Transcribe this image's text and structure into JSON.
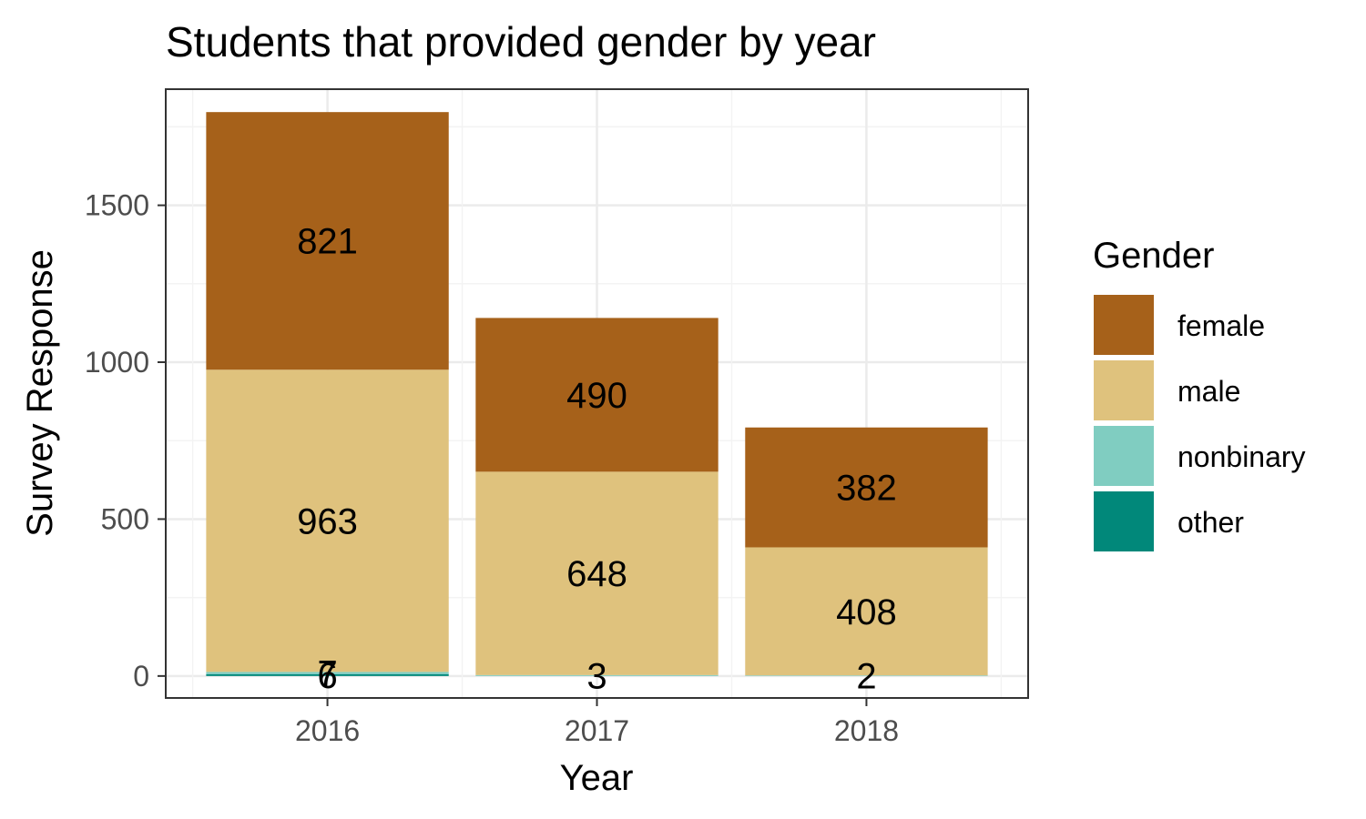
{
  "chart_data": {
    "type": "bar",
    "stacked": true,
    "title": "Students that provided gender by year",
    "xlabel": "Year",
    "ylabel": "Survey Response",
    "categories": [
      "2016",
      "2017",
      "2018"
    ],
    "ylim": [
      -70,
      1870
    ],
    "yticks": [
      0,
      500,
      1000,
      1500
    ],
    "grid": true,
    "legend": {
      "title": "Gender",
      "position": "right"
    },
    "series": [
      {
        "name": "other",
        "color": "#01887a",
        "values": [
          6,
          0,
          0
        ],
        "labels": [
          "6",
          "",
          ""
        ]
      },
      {
        "name": "nonbinary",
        "color": "#80cdc1",
        "values": [
          7,
          3,
          2
        ],
        "labels": [
          "7",
          "3",
          "2"
        ]
      },
      {
        "name": "male",
        "color": "#dfc27d",
        "values": [
          963,
          648,
          408
        ],
        "labels": [
          "963",
          "648",
          "408"
        ]
      },
      {
        "name": "female",
        "color": "#a6611a",
        "values": [
          821,
          490,
          382
        ],
        "labels": [
          "821",
          "490",
          "382"
        ]
      }
    ],
    "legend_order": [
      "female",
      "male",
      "nonbinary",
      "other"
    ]
  }
}
